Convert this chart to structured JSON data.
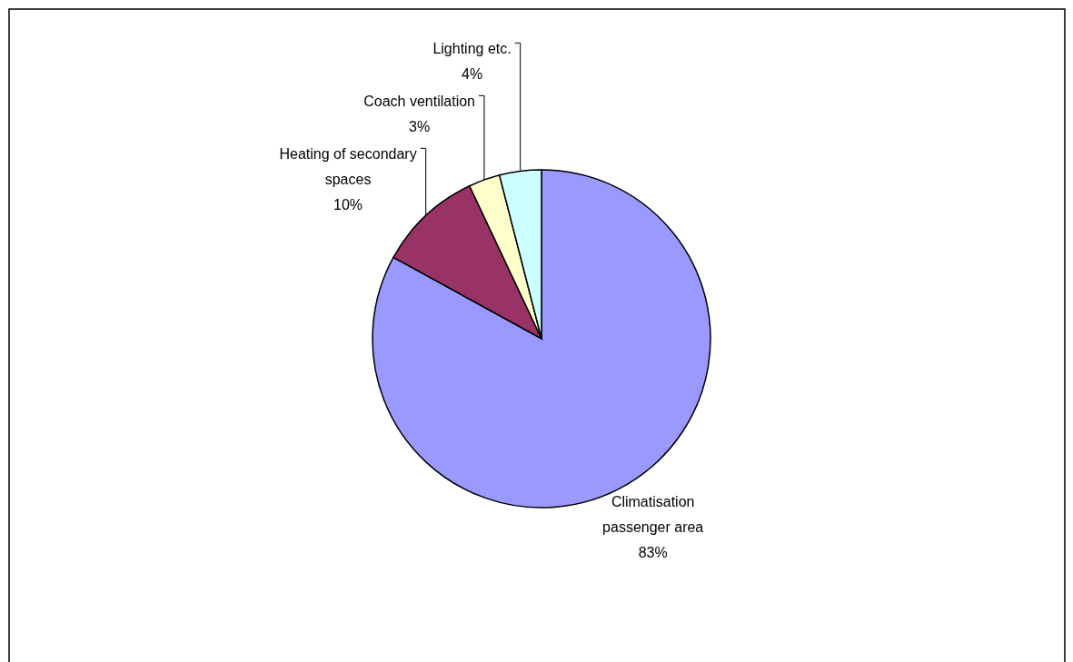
{
  "chart_data": {
    "type": "pie",
    "categories": [
      "Climatisation passenger area",
      "Heating of secondary spaces",
      "Coach ventilation",
      "Lighting etc."
    ],
    "values": [
      83,
      10,
      3,
      4
    ],
    "colors": [
      "#9999ff",
      "#993366",
      "#ffffcc",
      "#ccffff"
    ],
    "value_labels": [
      "83%",
      "10%",
      "3%",
      "4%"
    ],
    "legend": false
  }
}
